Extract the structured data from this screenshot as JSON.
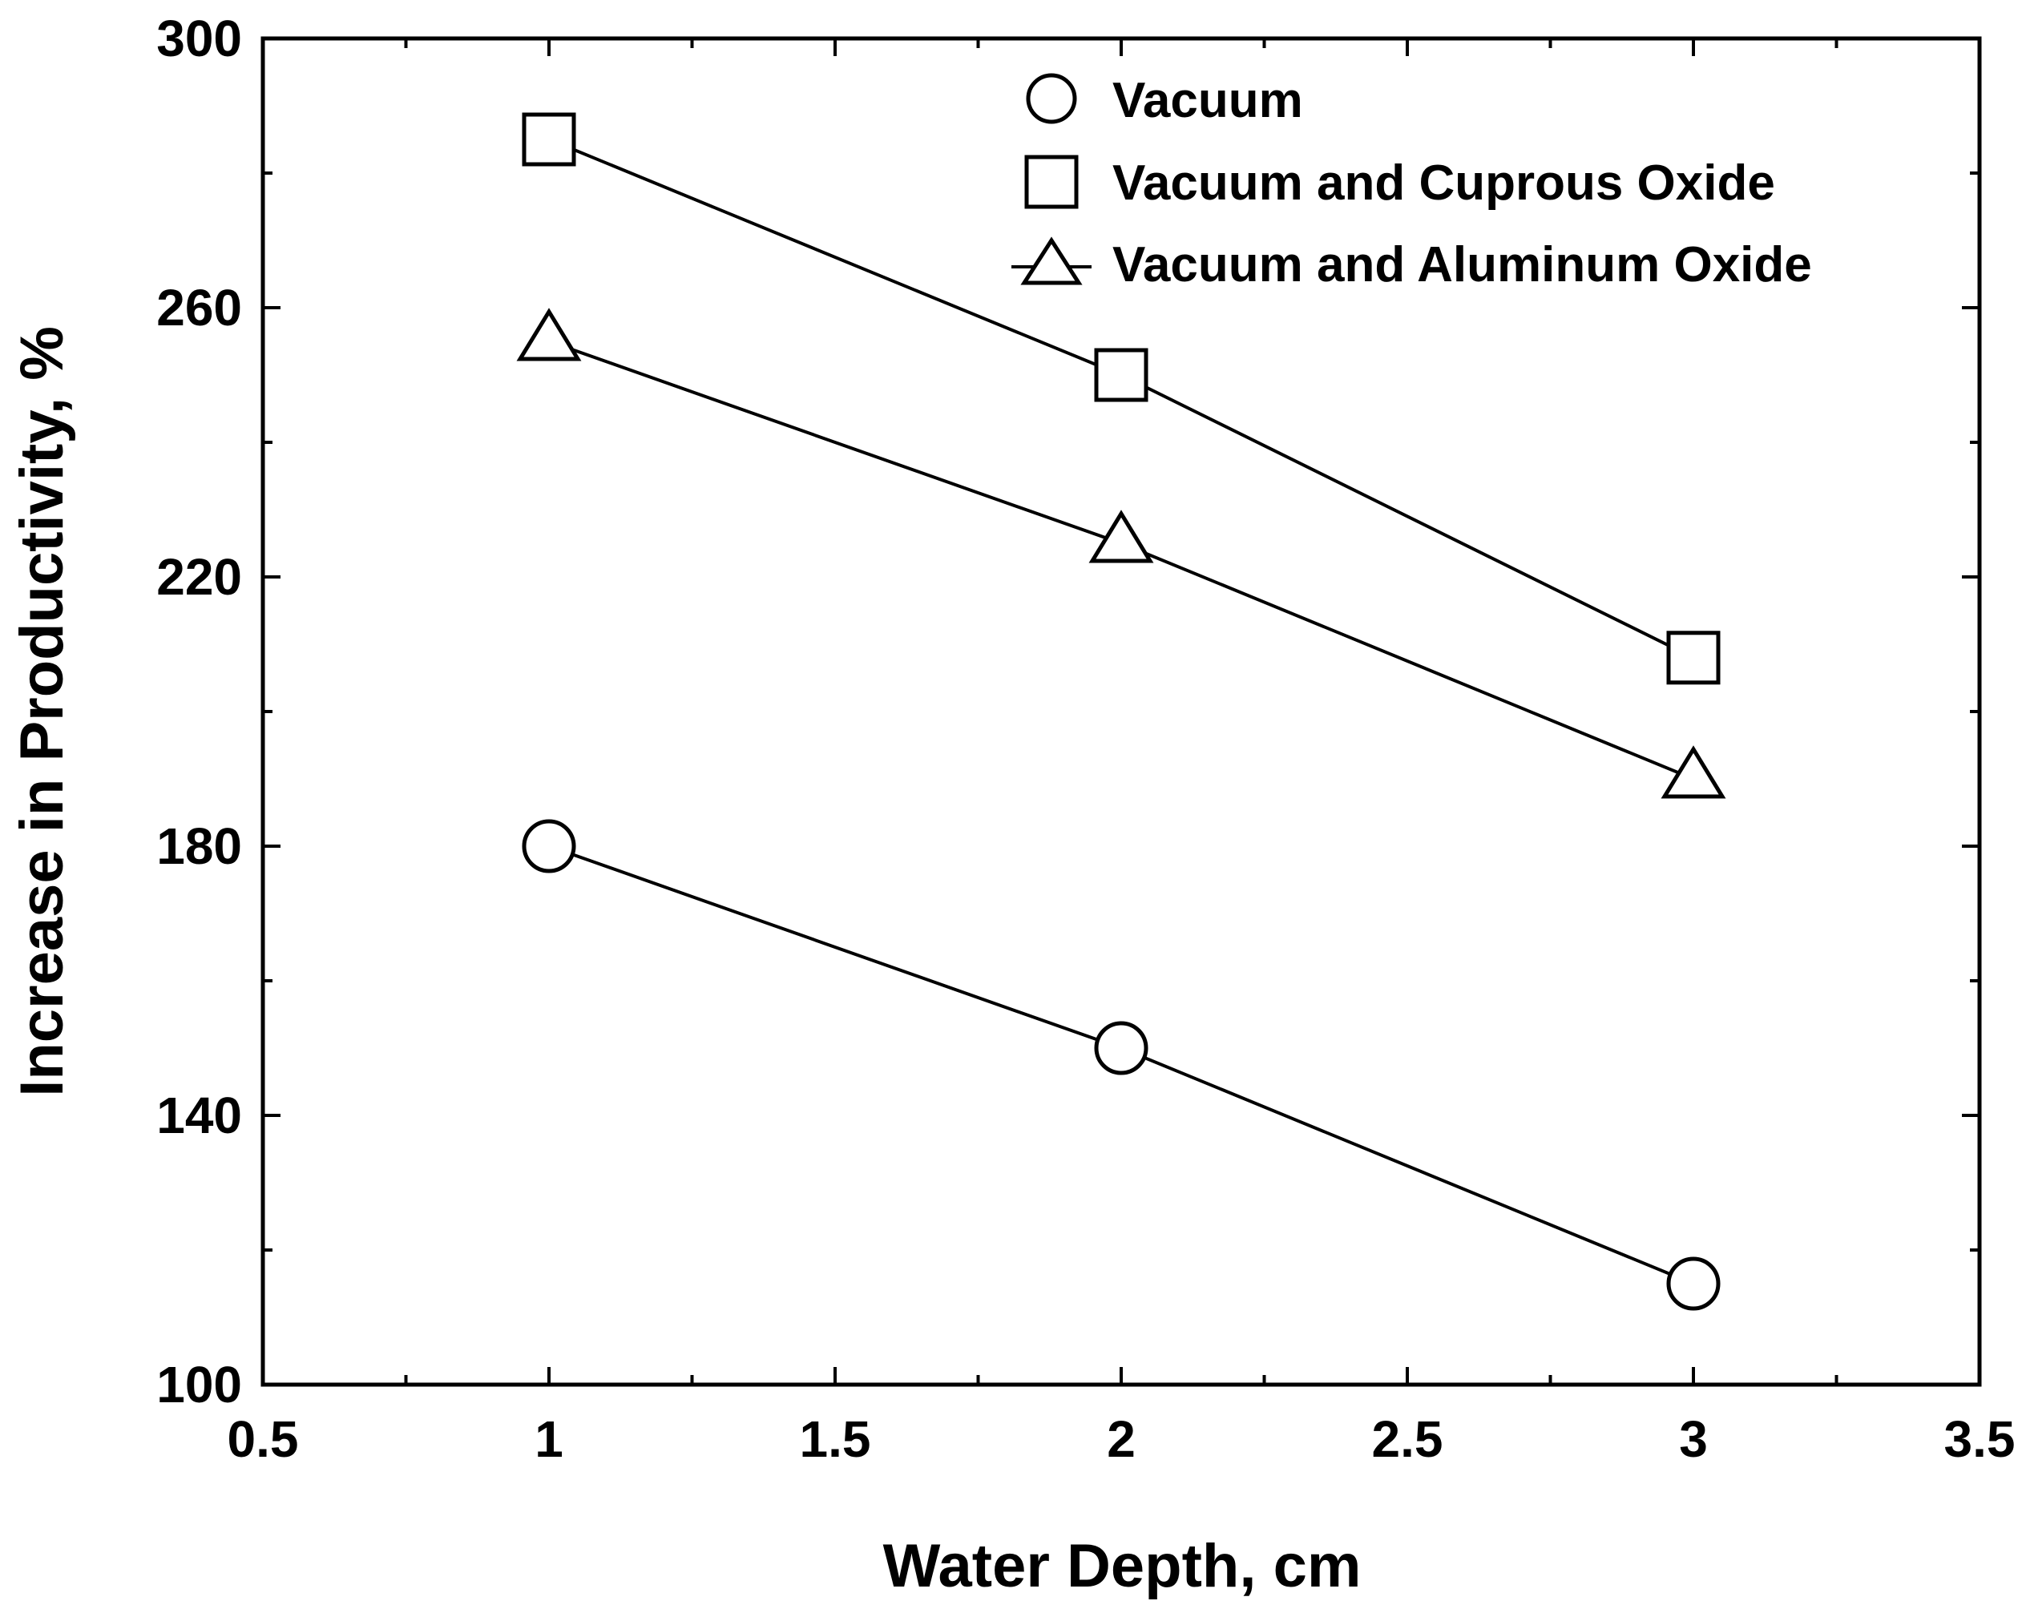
{
  "chart_data": {
    "type": "line",
    "title": "",
    "xlabel": "Water Depth, cm",
    "ylabel": "Increase in Productivity, %",
    "xlim": [
      0.5,
      3.5
    ],
    "ylim": [
      100,
      300
    ],
    "xticks": [
      0.5,
      1,
      1.5,
      2,
      2.5,
      3,
      3.5
    ],
    "xtick_labels": [
      "0.5",
      "1",
      "1.5",
      "2",
      "2.5",
      "3",
      "3.5"
    ],
    "yticks": [
      100,
      140,
      180,
      220,
      260,
      300
    ],
    "ytick_labels": [
      "100",
      "140",
      "180",
      "220",
      "260",
      "300"
    ],
    "x_minor_step": 0.25,
    "y_minor_step": 20,
    "grid": false,
    "legend_position": "top-right",
    "x": [
      1,
      2,
      3
    ],
    "series": [
      {
        "name": "Vacuum",
        "marker": "circle",
        "values": [
          180,
          150,
          115
        ]
      },
      {
        "name": "Vacuum and Cuprous Oxide",
        "marker": "square",
        "values": [
          285,
          250,
          208
        ]
      },
      {
        "name": "Vacuum and Aluminum Oxide",
        "marker": "triangle",
        "values": [
          255,
          225,
          190
        ]
      }
    ],
    "colors": {
      "line": "#000000",
      "marker_fill": "#ffffff",
      "background": "#ffffff"
    }
  }
}
